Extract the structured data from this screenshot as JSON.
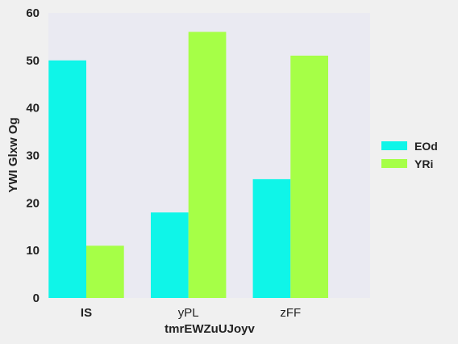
{
  "chart_data": {
    "type": "bar",
    "categories": [
      "IS",
      "yPL",
      "zFF"
    ],
    "series": [
      {
        "name": "EOd",
        "values": [
          50,
          18,
          25
        ],
        "color": "#0ff5e8"
      },
      {
        "name": "YRi",
        "values": [
          11,
          56,
          51
        ],
        "color": "#a6ff47"
      }
    ],
    "title": "",
    "xlabel": "tmrEWZuUJoyv",
    "ylabel": "YWI Glxw Og",
    "ylim": [
      0,
      60
    ],
    "yticks": [
      0,
      10,
      20,
      30,
      40,
      50,
      60
    ],
    "grid": false,
    "legend_position": "right",
    "plot_background": "#eaeaf2"
  }
}
